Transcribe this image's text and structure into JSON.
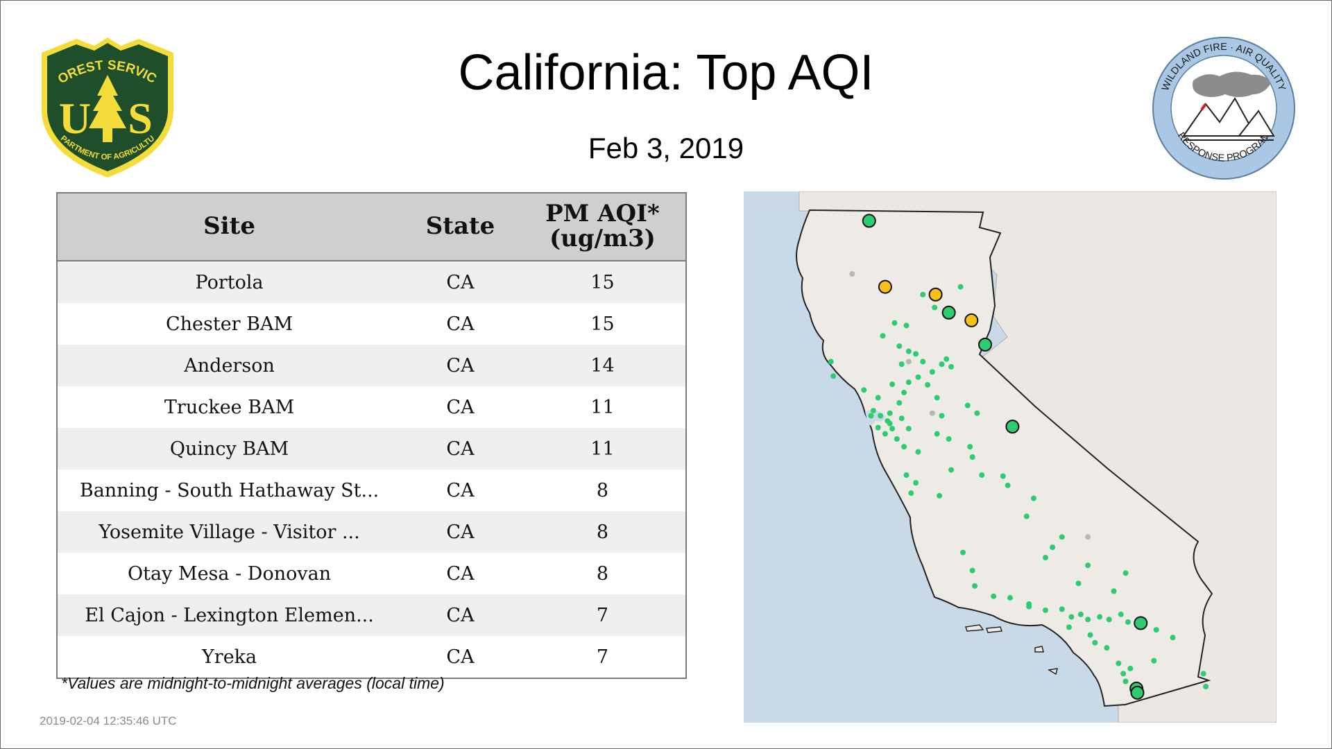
{
  "title": "California: Top AQI",
  "date": "Feb  3, 2019",
  "logos": {
    "forest_service": {
      "top_text": "FOREST SERVICE",
      "letters": "U S",
      "bottom_text": "DEPARTMENT OF AGRICULTURE",
      "color": "#1f4e2a",
      "accent": "#f4dd3a"
    },
    "wildland_fire": {
      "top_text": "WILDLAND FIRE · AIR QUALITY",
      "bottom_text": "RESPONSE PROGRAM",
      "ring_color": "#aac8e6"
    }
  },
  "table": {
    "headers": {
      "site": "Site",
      "state": "State",
      "aqi_line1": "PM AQI*",
      "aqi_line2": "(ug/m3)"
    },
    "rows": [
      {
        "site": "Portola",
        "state": "CA",
        "aqi": "15"
      },
      {
        "site": "Chester BAM",
        "state": "CA",
        "aqi": "15"
      },
      {
        "site": "Anderson",
        "state": "CA",
        "aqi": "14"
      },
      {
        "site": "Truckee BAM",
        "state": "CA",
        "aqi": "11"
      },
      {
        "site": "Quincy BAM",
        "state": "CA",
        "aqi": "11"
      },
      {
        "site": "Banning - South Hathaway St...",
        "state": "CA",
        "aqi": "8"
      },
      {
        "site": "Yosemite Village - Visitor ...",
        "state": "CA",
        "aqi": "8"
      },
      {
        "site": "Otay Mesa - Donovan",
        "state": "CA",
        "aqi": "8"
      },
      {
        "site": "El Cajon - Lexington Elemen...",
        "state": "CA",
        "aqi": "7"
      },
      {
        "site": "Yreka",
        "state": "CA",
        "aqi": "7"
      }
    ]
  },
  "footnote": "*Values are midnight-to-midnight averages (local time)",
  "timestamp": "2019-02-04 12:35:46 UTC",
  "map": {
    "colors": {
      "ocean": "#c8d9e8",
      "land": "#ebe7e3",
      "ca_fill": "#eeeae6",
      "good": "#2ecc71",
      "moderate": "#f5c118",
      "unknown": "#b8b8b8"
    },
    "monitors_large": [
      {
        "lon": -122.64,
        "lat": 41.73,
        "category": "good"
      },
      {
        "lon": -122.3,
        "lat": 40.45,
        "category": "moderate"
      },
      {
        "lon": -121.23,
        "lat": 40.3,
        "category": "moderate"
      },
      {
        "lon": -120.95,
        "lat": 39.95,
        "category": "good"
      },
      {
        "lon": -120.47,
        "lat": 39.8,
        "category": "moderate"
      },
      {
        "lon": -120.18,
        "lat": 39.33,
        "category": "good"
      },
      {
        "lon": -119.6,
        "lat": 37.74,
        "category": "good"
      },
      {
        "lon": -116.88,
        "lat": 33.93,
        "category": "good"
      },
      {
        "lon": -116.97,
        "lat": 32.66,
        "category": "good"
      },
      {
        "lon": -116.95,
        "lat": 32.58,
        "category": "good"
      }
    ],
    "monitors_small": [
      [
        -123.45,
        39.0
      ],
      [
        -123.4,
        38.72
      ],
      [
        -122.15,
        38.56
      ],
      [
        -121.9,
        38.4
      ],
      [
        -122.0,
        38.2
      ],
      [
        -121.8,
        38.6
      ],
      [
        -121.6,
        38.7
      ],
      [
        -121.3,
        38.8
      ],
      [
        -121.4,
        38.55
      ],
      [
        -121.2,
        38.3
      ],
      [
        -122.0,
        39.3
      ],
      [
        -122.1,
        39.75
      ],
      [
        -121.85,
        39.7
      ],
      [
        -121.8,
        39.2
      ],
      [
        -121.5,
        39.0
      ],
      [
        -121.0,
        39.05
      ],
      [
        -120.9,
        38.9
      ],
      [
        -121.1,
        38.95
      ],
      [
        -122.2,
        38.0
      ],
      [
        -122.25,
        37.85
      ],
      [
        -122.3,
        37.6
      ],
      [
        -122.05,
        37.5
      ],
      [
        -121.9,
        37.35
      ],
      [
        -121.6,
        37.25
      ],
      [
        -122.2,
        37.8
      ],
      [
        -122.45,
        37.72
      ],
      [
        -122.4,
        37.95
      ],
      [
        -122.15,
        37.7
      ],
      [
        -121.95,
        37.9
      ],
      [
        -121.8,
        37.7
      ],
      [
        -121.1,
        37.95
      ],
      [
        -121.2,
        37.6
      ],
      [
        -120.95,
        37.5
      ],
      [
        -120.5,
        37.35
      ],
      [
        -120.45,
        37.15
      ],
      [
        -120.9,
        36.9
      ],
      [
        -121.65,
        36.65
      ],
      [
        -121.75,
        36.45
      ],
      [
        -121.15,
        36.4
      ],
      [
        -121.85,
        36.8
      ],
      [
        -120.25,
        36.8
      ],
      [
        -119.8,
        36.78
      ],
      [
        -119.7,
        36.6
      ],
      [
        -119.15,
        36.35
      ],
      [
        -119.3,
        36.0
      ],
      [
        -118.75,
        35.4
      ],
      [
        -118.55,
        35.6
      ],
      [
        -118.9,
        35.2
      ],
      [
        -120.65,
        35.3
      ],
      [
        -120.45,
        34.95
      ],
      [
        -120.4,
        34.65
      ],
      [
        -120.0,
        34.45
      ],
      [
        -119.65,
        34.42
      ],
      [
        -119.25,
        34.3
      ],
      [
        -118.9,
        34.18
      ],
      [
        -118.55,
        34.2
      ],
      [
        -118.35,
        34.05
      ],
      [
        -118.15,
        34.1
      ],
      [
        -118.0,
        34.0
      ],
      [
        -117.75,
        34.05
      ],
      [
        -117.55,
        34.0
      ],
      [
        -117.3,
        34.1
      ],
      [
        -117.15,
        33.95
      ],
      [
        -117.95,
        33.7
      ],
      [
        -117.85,
        33.55
      ],
      [
        -117.6,
        33.45
      ],
      [
        -117.35,
        33.15
      ],
      [
        -117.1,
        33.05
      ],
      [
        -117.2,
        32.8
      ],
      [
        -117.05,
        32.7
      ],
      [
        -116.2,
        33.65
      ],
      [
        -115.55,
        32.95
      ],
      [
        -115.5,
        32.7
      ],
      [
        -118.2,
        34.7
      ],
      [
        -117.2,
        34.9
      ],
      [
        -118.0,
        35.05
      ],
      [
        -122.6,
        37.95
      ],
      [
        -122.45,
        38.3
      ],
      [
        -122.75,
        38.45
      ],
      [
        -122.55,
        38.05
      ],
      [
        -121.25,
        40.05
      ],
      [
        -121.5,
        40.3
      ],
      [
        -120.7,
        40.45
      ],
      [
        -122.35,
        39.5
      ],
      [
        -121.95,
        38.95
      ],
      [
        -121.65,
        39.15
      ],
      [
        -120.55,
        38.15
      ],
      [
        -120.35,
        38.0
      ],
      [
        -119.25,
        34.25
      ],
      [
        -118.4,
        33.85
      ],
      [
        -117.25,
        32.95
      ],
      [
        -116.55,
        33.8
      ],
      [
        -116.6,
        33.2
      ],
      [
        -117.45,
        34.55
      ]
    ],
    "monitors_gray": [
      [
        -123.0,
        40.7
      ],
      [
        -121.8,
        39.0
      ],
      [
        -121.3,
        38.0
      ],
      [
        -118.0,
        35.6
      ]
    ]
  }
}
